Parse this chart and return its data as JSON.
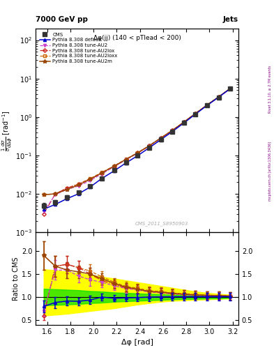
{
  "title_left": "7000 GeV pp",
  "title_right": "Jets",
  "panel_title": "Δφ(jj) (140 < pTlead < 200)",
  "watermark": "CMS_2011_S8950903",
  "right_label": "mcplots.cern.ch [arXiv:1306.3436]",
  "right_label2": "Rivet 3.1.10, ≥ 2.7M events",
  "xlabel": "Δφ [rad]",
  "ylabel_main": "1/σ dσ/dΔφ [rad⁻¹]",
  "ylabel_ratio": "Ratio to CMS",
  "xlim": [
    1.5,
    3.25
  ],
  "ylim_main": [
    0.001,
    200.0
  ],
  "ylim_ratio": [
    0.4,
    2.4
  ],
  "ratio_yticks": [
    0.5,
    1.0,
    1.5,
    2.0
  ],
  "cms_x": [
    1.57,
    1.67,
    1.77,
    1.87,
    1.97,
    2.07,
    2.18,
    2.28,
    2.38,
    2.48,
    2.58,
    2.68,
    2.78,
    2.88,
    2.98,
    3.08,
    3.18
  ],
  "cms_y": [
    0.005,
    0.006,
    0.0082,
    0.011,
    0.016,
    0.025,
    0.041,
    0.065,
    0.099,
    0.158,
    0.255,
    0.415,
    0.695,
    1.18,
    1.98,
    3.25,
    5.4
  ],
  "cms_yerr": [
    0.0008,
    0.0008,
    0.0009,
    0.001,
    0.0015,
    0.002,
    0.003,
    0.005,
    0.008,
    0.013,
    0.021,
    0.034,
    0.056,
    0.095,
    0.16,
    0.26,
    0.43
  ],
  "default_x": [
    1.57,
    1.67,
    1.77,
    1.87,
    1.97,
    2.07,
    2.18,
    2.28,
    2.38,
    2.48,
    2.58,
    2.68,
    2.78,
    2.88,
    2.98,
    3.08,
    3.18
  ],
  "default_y": [
    0.004,
    0.0053,
    0.0075,
    0.01,
    0.015,
    0.025,
    0.04,
    0.064,
    0.098,
    0.158,
    0.256,
    0.418,
    0.7,
    1.19,
    2.0,
    3.28,
    5.45
  ],
  "au2_x": [
    1.57,
    1.67,
    1.77,
    1.87,
    1.97,
    2.07,
    2.18,
    2.28,
    2.38,
    2.48,
    2.58,
    2.68,
    2.78,
    2.88,
    2.98,
    3.08,
    3.18
  ],
  "au2_y": [
    0.0035,
    0.0095,
    0.013,
    0.016,
    0.022,
    0.033,
    0.051,
    0.077,
    0.114,
    0.175,
    0.278,
    0.442,
    0.73,
    1.22,
    2.03,
    3.32,
    5.48
  ],
  "au2lox_x": [
    1.57,
    1.67,
    1.77,
    1.87,
    1.97,
    2.07,
    2.18,
    2.28,
    2.38,
    2.48,
    2.58,
    2.68,
    2.78,
    2.88,
    2.98,
    3.08,
    3.18
  ],
  "au2lox_y": [
    0.003,
    0.01,
    0.014,
    0.018,
    0.024,
    0.034,
    0.052,
    0.078,
    0.116,
    0.178,
    0.282,
    0.448,
    0.74,
    1.24,
    2.05,
    3.35,
    5.52
  ],
  "au2loxx_x": [
    1.57,
    1.67,
    1.77,
    1.87,
    1.97,
    2.07,
    2.18,
    2.28,
    2.38,
    2.48,
    2.58,
    2.68,
    2.78,
    2.88,
    2.98,
    3.08,
    3.18
  ],
  "au2loxx_y": [
    0.0095,
    0.01,
    0.014,
    0.018,
    0.025,
    0.036,
    0.054,
    0.08,
    0.118,
    0.18,
    0.286,
    0.452,
    0.745,
    1.245,
    2.06,
    3.37,
    5.54
  ],
  "au2m_x": [
    1.57,
    1.67,
    1.77,
    1.87,
    1.97,
    2.07,
    2.18,
    2.28,
    2.38,
    2.48,
    2.58,
    2.68,
    2.78,
    2.88,
    2.98,
    3.08,
    3.18
  ],
  "au2m_y": [
    0.0095,
    0.01,
    0.013,
    0.017,
    0.024,
    0.035,
    0.053,
    0.079,
    0.116,
    0.177,
    0.282,
    0.447,
    0.738,
    1.235,
    2.055,
    3.36,
    5.52
  ],
  "color_cms": "#333333",
  "color_default": "#0000cc",
  "color_au2": "#cc44cc",
  "color_au2lox": "#cc2222",
  "color_au2loxx": "#cc6600",
  "color_au2m": "#994400",
  "band_yellow_lo": [
    0.6,
    0.62,
    0.64,
    0.67,
    0.7,
    0.73,
    0.76,
    0.8,
    0.84,
    0.87,
    0.9,
    0.92,
    0.93,
    0.94,
    0.95,
    0.96,
    0.97
  ],
  "band_yellow_hi": [
    1.6,
    1.58,
    1.55,
    1.52,
    1.48,
    1.44,
    1.4,
    1.36,
    1.32,
    1.28,
    1.24,
    1.2,
    1.16,
    1.12,
    1.09,
    1.07,
    1.05
  ],
  "band_green_lo": [
    0.82,
    0.83,
    0.84,
    0.85,
    0.87,
    0.88,
    0.9,
    0.91,
    0.92,
    0.93,
    0.94,
    0.95,
    0.96,
    0.96,
    0.97,
    0.97,
    0.98
  ],
  "band_green_hi": [
    1.18,
    1.17,
    1.16,
    1.15,
    1.13,
    1.12,
    1.1,
    1.09,
    1.08,
    1.07,
    1.06,
    1.05,
    1.04,
    1.04,
    1.03,
    1.03,
    1.02
  ],
  "dpi": 100
}
